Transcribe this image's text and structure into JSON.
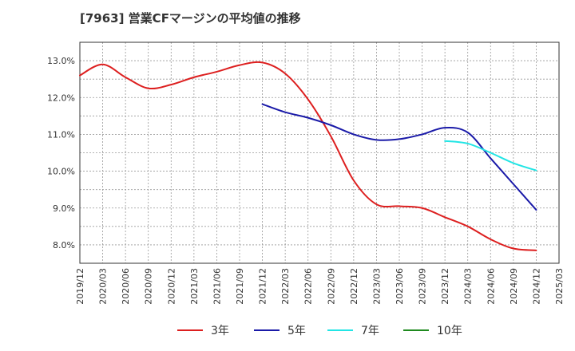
{
  "chart_data": {
    "type": "line",
    "title": "[7963]  営業CFマージンの平均値の推移",
    "xlabel": "",
    "ylabel": "",
    "ylim": [
      7.5,
      13.5
    ],
    "yticks": [
      "8.0%",
      "9.0%",
      "10.0%",
      "11.0%",
      "12.0%",
      "13.0%"
    ],
    "ytick_values": [
      8,
      9,
      10,
      11,
      12,
      13
    ],
    "xticks": [
      "2019/12",
      "2020/03",
      "2020/06",
      "2020/09",
      "2020/12",
      "2021/03",
      "2021/06",
      "2021/09",
      "2021/12",
      "2022/03",
      "2022/06",
      "2022/09",
      "2022/12",
      "2023/03",
      "2023/06",
      "2023/09",
      "2023/12",
      "2024/03",
      "2024/06",
      "2024/09",
      "2024/12",
      "2025/03"
    ],
    "grid": true,
    "legend_position": "bottom",
    "series": [
      {
        "name": "3年",
        "color": "#dd1f1f",
        "x": [
          "2019/12",
          "2020/03",
          "2020/06",
          "2020/09",
          "2020/12",
          "2021/03",
          "2021/06",
          "2021/09",
          "2021/12",
          "2022/03",
          "2022/06",
          "2022/09",
          "2022/12",
          "2023/03",
          "2023/06",
          "2023/09",
          "2023/12",
          "2024/03",
          "2024/06",
          "2024/09",
          "2024/12"
        ],
        "values": [
          12.6,
          12.9,
          12.55,
          12.25,
          12.35,
          12.55,
          12.7,
          12.88,
          12.95,
          12.65,
          11.95,
          10.95,
          9.75,
          9.1,
          9.05,
          9.0,
          8.75,
          8.5,
          8.15,
          7.9,
          7.85
        ]
      },
      {
        "name": "5年",
        "color": "#1a1aa8",
        "x": [
          "2021/12",
          "2022/03",
          "2022/06",
          "2022/09",
          "2022/12",
          "2023/03",
          "2023/06",
          "2023/09",
          "2023/12",
          "2024/03",
          "2024/06",
          "2024/09",
          "2024/12"
        ],
        "values": [
          11.82,
          11.6,
          11.45,
          11.25,
          11.0,
          10.85,
          10.87,
          11.0,
          11.18,
          11.05,
          10.35,
          9.65,
          8.95
        ]
      },
      {
        "name": "7年",
        "color": "#22e5e5",
        "x": [
          "2023/12",
          "2024/03",
          "2024/06",
          "2024/09",
          "2024/12"
        ],
        "values": [
          10.82,
          10.75,
          10.5,
          10.22,
          10.02
        ]
      },
      {
        "name": "10年",
        "color": "#1f8a1f",
        "x": [],
        "values": []
      }
    ]
  }
}
